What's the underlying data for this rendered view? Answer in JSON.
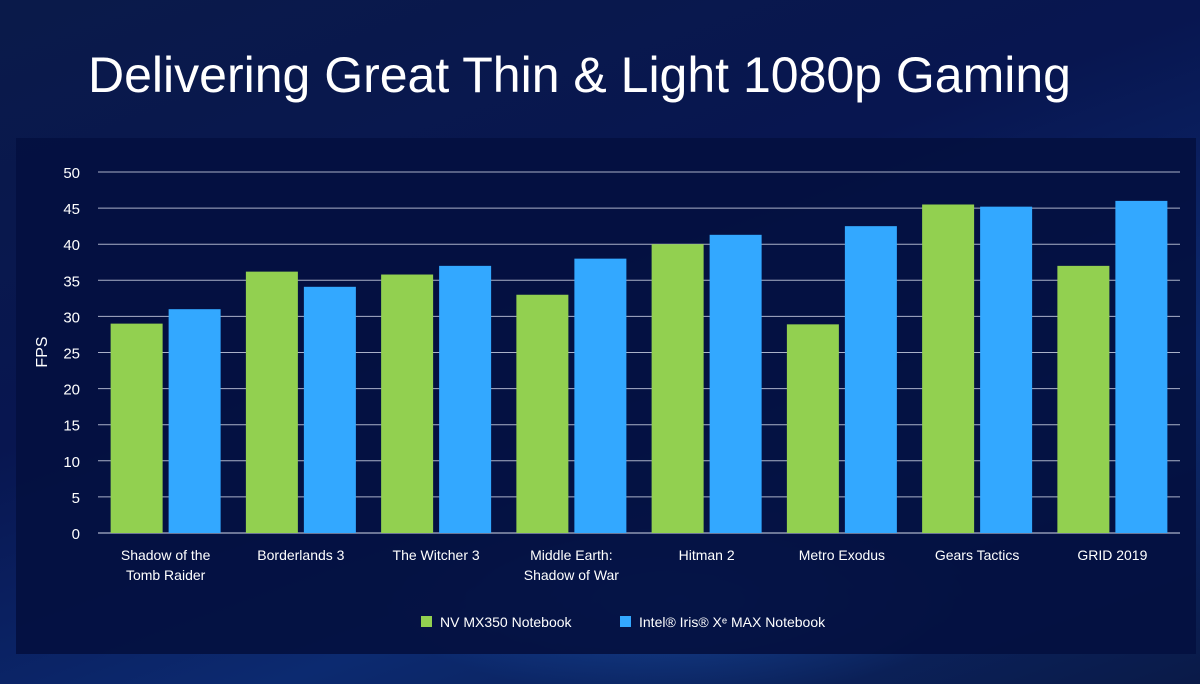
{
  "title": "Delivering Great Thin & Light 1080p Gaming",
  "colors": {
    "nv": "#92d050",
    "intel": "#33a8ff",
    "grid": "#c8cde0",
    "text": "#ffffff"
  },
  "chart_data": {
    "type": "bar",
    "categories": [
      "Shadow of the\nTomb Raider",
      "Borderlands 3",
      "The Witcher 3",
      "Middle Earth:\nShadow of War",
      "Hitman 2",
      "Metro Exodus",
      "Gears Tactics",
      "GRID 2019"
    ],
    "series": [
      {
        "name": "NV MX350 Notebook",
        "values": [
          29,
          36.2,
          35.8,
          33,
          40,
          28.9,
          45.5,
          37
        ]
      },
      {
        "name": "Intel® Iris® Xᵉ MAX Notebook",
        "values": [
          31,
          34.1,
          37,
          38,
          41.3,
          42.5,
          45.2,
          46
        ]
      }
    ],
    "ylabel": "FPS",
    "ylim": [
      0,
      50
    ],
    "yticks": [
      0,
      5,
      10,
      15,
      20,
      25,
      30,
      35,
      40,
      45,
      50
    ],
    "grid": true,
    "legend": "bottom-center"
  }
}
